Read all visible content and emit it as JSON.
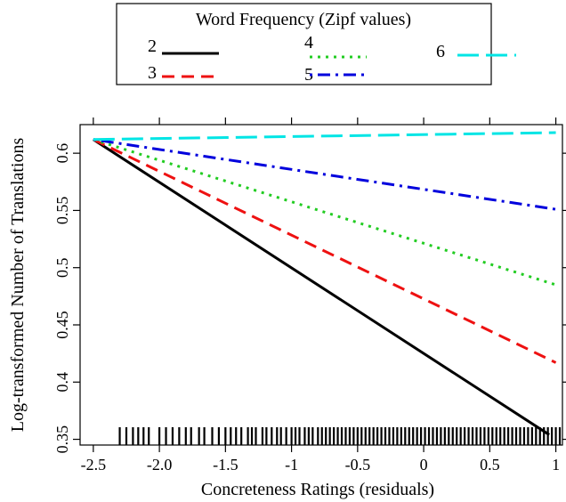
{
  "chart_data": {
    "type": "line",
    "title": "",
    "xlabel": "Concreteness Ratings (residuals)",
    "ylabel": "Log-transformed Number of Translations",
    "xlim": [
      -2.6,
      1.05
    ],
    "ylim": [
      0.345,
      0.625
    ],
    "xticks": [
      -2.5,
      -2.0,
      -1.5,
      -1,
      -0.5,
      0,
      0.5,
      1
    ],
    "xtick_labels": [
      "-2.5",
      "-2.0",
      "-1.5",
      "-1",
      "-0.5",
      "0",
      "0.5",
      "1"
    ],
    "yticks": [
      0.35,
      0.4,
      0.45,
      0.5,
      0.55,
      0.6
    ],
    "ytick_labels": [
      "0.35",
      "0.4",
      "0.45",
      "0.5",
      "0.55",
      "0.6"
    ],
    "grid": false,
    "legend": {
      "title": "Word Frequency (Zipf values)",
      "placement": "top, above plot",
      "entries": [
        "2",
        "3",
        "4",
        "5",
        "6"
      ]
    },
    "series": [
      {
        "name": "2",
        "color": "#000000",
        "dash": "solid",
        "x": [
          -2.5,
          0.95
        ],
        "y": [
          0.612,
          0.354
        ]
      },
      {
        "name": "3",
        "color": "#ee1111",
        "dash": "dashed",
        "x": [
          -2.5,
          1.0
        ],
        "y": [
          0.612,
          0.417
        ]
      },
      {
        "name": "4",
        "color": "#22cc22",
        "dash": "dotted",
        "x": [
          -2.5,
          1.0
        ],
        "y": [
          0.612,
          0.485
        ]
      },
      {
        "name": "5",
        "color": "#0000dd",
        "dash": "dotdash",
        "x": [
          -2.5,
          1.0
        ],
        "y": [
          0.612,
          0.551
        ]
      },
      {
        "name": "6",
        "color": "#00e5e5",
        "dash": "longdash",
        "x": [
          -2.5,
          1.0
        ],
        "y": [
          0.612,
          0.618
        ]
      }
    ],
    "rug_x": [
      -2.3,
      -2.25,
      -2.2,
      -2.16,
      -2.12,
      -2.08,
      -2.0,
      -1.95,
      -1.9,
      -1.85,
      -1.8,
      -1.76,
      -1.7,
      -1.66,
      -1.6,
      -1.55,
      -1.5,
      -1.46,
      -1.42,
      -1.38,
      -1.33,
      -1.3,
      -1.27,
      -1.22,
      -1.19,
      -1.15,
      -1.11,
      -1.08,
      -1.04,
      -1.0,
      -0.97,
      -0.94,
      -0.9,
      -0.87,
      -0.84,
      -0.8,
      -0.77,
      -0.74,
      -0.71,
      -0.68,
      -0.65,
      -0.62,
      -0.59,
      -0.56,
      -0.53,
      -0.5,
      -0.47,
      -0.44,
      -0.41,
      -0.38,
      -0.35,
      -0.32,
      -0.29,
      -0.26,
      -0.23,
      -0.2,
      -0.17,
      -0.14,
      -0.11,
      -0.08,
      -0.05,
      -0.02,
      0.01,
      0.04,
      0.07,
      0.1,
      0.13,
      0.16,
      0.19,
      0.22,
      0.25,
      0.28,
      0.31,
      0.34,
      0.37,
      0.4,
      0.43,
      0.46,
      0.49,
      0.52,
      0.55,
      0.58,
      0.61,
      0.64,
      0.67,
      0.7,
      0.73,
      0.76,
      0.79,
      0.82,
      0.85,
      0.88,
      0.91,
      0.94,
      0.97,
      1.0,
      1.03
    ]
  }
}
